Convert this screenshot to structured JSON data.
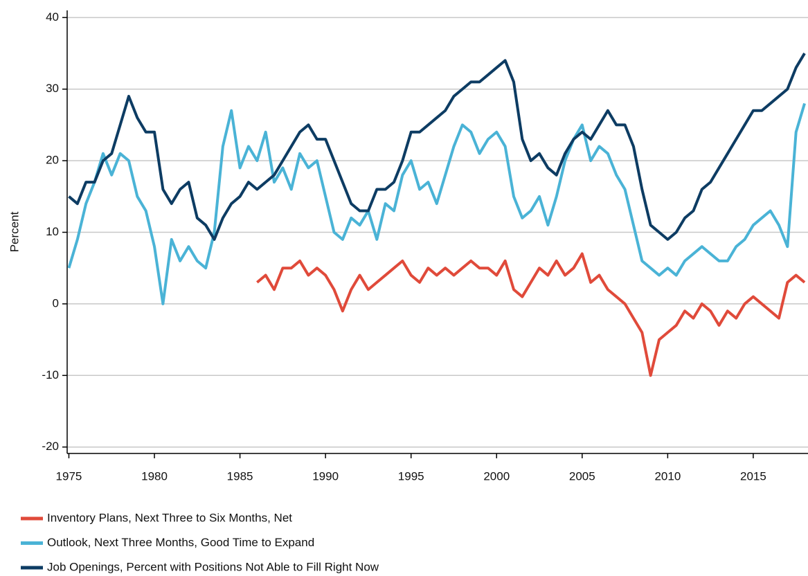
{
  "chart_data": {
    "type": "line",
    "y_label": "Percent",
    "x": [
      1975,
      1975.5,
      1976,
      1976.5,
      1977,
      1977.5,
      1978,
      1978.5,
      1979,
      1979.5,
      1980,
      1980.5,
      1981,
      1981.5,
      1982,
      1982.5,
      1983,
      1983.5,
      1984,
      1984.5,
      1985,
      1985.5,
      1986,
      1986.5,
      1987,
      1987.5,
      1988,
      1988.5,
      1989,
      1989.5,
      1990,
      1990.5,
      1991,
      1991.5,
      1992,
      1992.5,
      1993,
      1993.5,
      1994,
      1994.5,
      1995,
      1995.5,
      1996,
      1996.5,
      1997,
      1997.5,
      1998,
      1998.5,
      1999,
      1999.5,
      2000,
      2000.5,
      2001,
      2001.5,
      2002,
      2002.5,
      2003,
      2003.5,
      2004,
      2004.5,
      2005,
      2005.5,
      2006,
      2006.5,
      2007,
      2007.5,
      2008,
      2008.5,
      2009,
      2009.5,
      2010,
      2010.5,
      2011,
      2011.5,
      2012,
      2012.5,
      2013,
      2013.5,
      2014,
      2014.5,
      2015,
      2015.5,
      2016,
      2016.5,
      2017,
      2017.5,
      2018
    ],
    "series": [
      {
        "name": "Inventory Plans, Next Three to Six Months, Net",
        "color": "#e04a3a",
        "values": [
          null,
          null,
          null,
          null,
          null,
          null,
          null,
          null,
          null,
          null,
          null,
          null,
          null,
          null,
          null,
          null,
          null,
          null,
          null,
          null,
          null,
          null,
          3,
          4,
          2,
          5,
          5,
          6,
          4,
          5,
          4,
          2,
          -1,
          2,
          4,
          2,
          3,
          4,
          5,
          6,
          4,
          3,
          5,
          4,
          5,
          4,
          5,
          6,
          5,
          5,
          4,
          6,
          2,
          1,
          3,
          5,
          4,
          6,
          4,
          5,
          7,
          3,
          4,
          2,
          1,
          0,
          -2,
          -4,
          -10,
          -5,
          -4,
          -3,
          -1,
          -2,
          0,
          -1,
          -3,
          -1,
          -2,
          0,
          1,
          0,
          -1,
          -2,
          3,
          4,
          3
        ]
      },
      {
        "name": "Outlook, Next Three Months, Good Time to Expand",
        "color": "#4ab3d6",
        "values": [
          5,
          9,
          14,
          17,
          21,
          18,
          21,
          20,
          15,
          13,
          8,
          0,
          9,
          6,
          8,
          6,
          5,
          10,
          22,
          27,
          19,
          22,
          20,
          24,
          17,
          19,
          16,
          21,
          19,
          20,
          15,
          10,
          9,
          12,
          11,
          13,
          9,
          14,
          13,
          18,
          20,
          16,
          17,
          14,
          18,
          22,
          25,
          24,
          21,
          23,
          24,
          22,
          15,
          12,
          13,
          15,
          11,
          15,
          20,
          23,
          25,
          20,
          22,
          21,
          18,
          16,
          11,
          6,
          5,
          4,
          5,
          4,
          6,
          7,
          8,
          7,
          6,
          6,
          8,
          9,
          11,
          12,
          13,
          11,
          8,
          24,
          28
        ]
      },
      {
        "name": "Job Openings, Percent with Positions Not Able to Fill Right Now",
        "color": "#0d3c63",
        "values": [
          15,
          14,
          17,
          17,
          20,
          21,
          25,
          29,
          26,
          24,
          24,
          16,
          14,
          16,
          17,
          12,
          11,
          9,
          12,
          14,
          15,
          17,
          16,
          17,
          18,
          20,
          22,
          24,
          25,
          23,
          23,
          20,
          17,
          14,
          13,
          13,
          16,
          16,
          17,
          20,
          24,
          24,
          25,
          26,
          27,
          29,
          30,
          31,
          31,
          32,
          33,
          34,
          31,
          23,
          20,
          21,
          19,
          18,
          21,
          23,
          24,
          23,
          25,
          27,
          25,
          25,
          22,
          16,
          11,
          10,
          9,
          10,
          12,
          13,
          16,
          17,
          19,
          21,
          23,
          25,
          27,
          27,
          28,
          29,
          30,
          33,
          35
        ]
      }
    ],
    "xlim": [
      1974.9,
      2018.2
    ],
    "ylim": [
      -20.9,
      41
    ],
    "xticks": [
      1975,
      1980,
      1985,
      1990,
      1995,
      2000,
      2005,
      2010,
      2015
    ],
    "yticks": [
      -20,
      -10,
      0,
      10,
      20,
      30,
      40
    ],
    "grid": true
  }
}
